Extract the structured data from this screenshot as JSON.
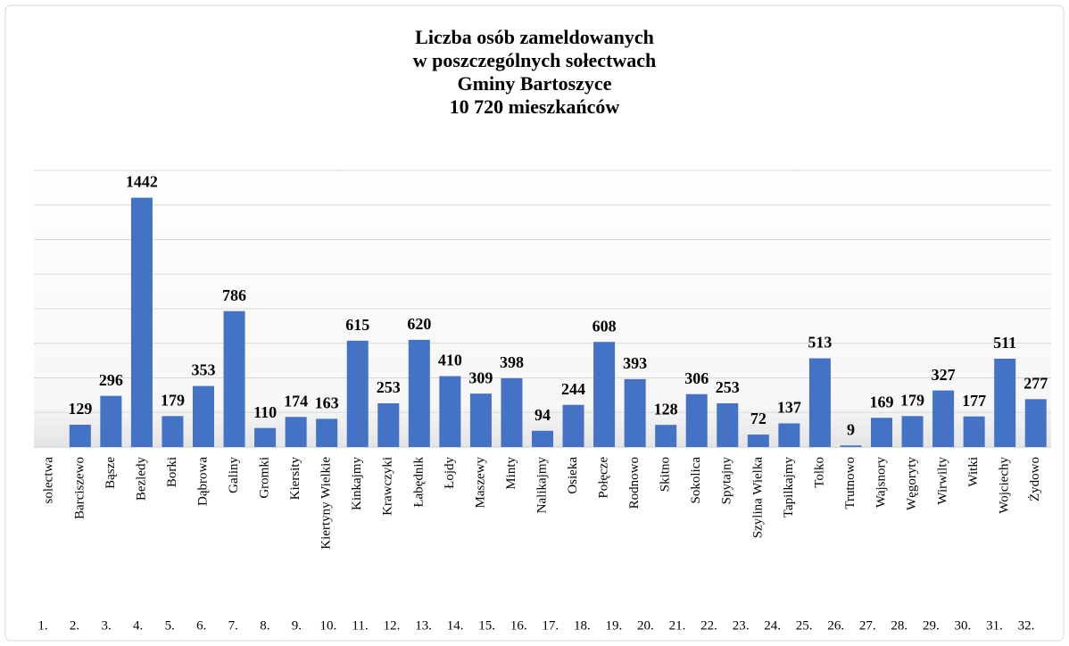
{
  "chart_data": {
    "type": "bar",
    "title": [
      "Liczba osób zameldowanych",
      "w poszczególnych sołectwach",
      "Gminy Bartoszyce",
      "10 720 mieszkańców"
    ],
    "categories": [
      "solectwa",
      "Barciszewo",
      "Bąsze",
      "Bezledy",
      "Borki",
      "Dąbrowa",
      "Galiny",
      "Gromki",
      "Kiersity",
      "Kiertyny Wielkie",
      "Kinkajmy",
      "Krawczyki",
      "Łabędnik",
      "Łojdy",
      "Maszewy",
      "Minty",
      "Nalikajmy",
      "Osieka",
      "Połęcze",
      "Rodnowo",
      "Skitno",
      "Sokolica",
      "Spytajny",
      "Szylina Wielka",
      "Tapilkajmy",
      "Tolko",
      "Trutnowo",
      "Wajsnory",
      "Węgoryty",
      "Wirwilty",
      "Witki",
      "Wojciechy",
      "Żydowo"
    ],
    "values": [
      null,
      129,
      296,
      1442,
      179,
      353,
      786,
      110,
      174,
      163,
      615,
      253,
      620,
      410,
      309,
      398,
      94,
      244,
      608,
      393,
      128,
      306,
      253,
      72,
      137,
      513,
      9,
      169,
      179,
      327,
      177,
      511,
      277
    ],
    "numbers": [
      "1.",
      "2.",
      "3.",
      "4.",
      "5.",
      "6.",
      "7.",
      "8.",
      "9.",
      "10.",
      "11.",
      "12.",
      "13.",
      "14.",
      "15.",
      "16.",
      "17.",
      "18.",
      "19.",
      "20.",
      "21.",
      "22.",
      "23.",
      "24.",
      "25.",
      "26.",
      "27.",
      "28.",
      "29.",
      "30.",
      "31.",
      "32."
    ],
    "color": "#4472c4",
    "ylim": [
      0,
      1600
    ],
    "yticks": [
      0,
      200,
      400,
      600,
      800,
      1000,
      1200,
      1400,
      1600
    ],
    "grid": true
  }
}
